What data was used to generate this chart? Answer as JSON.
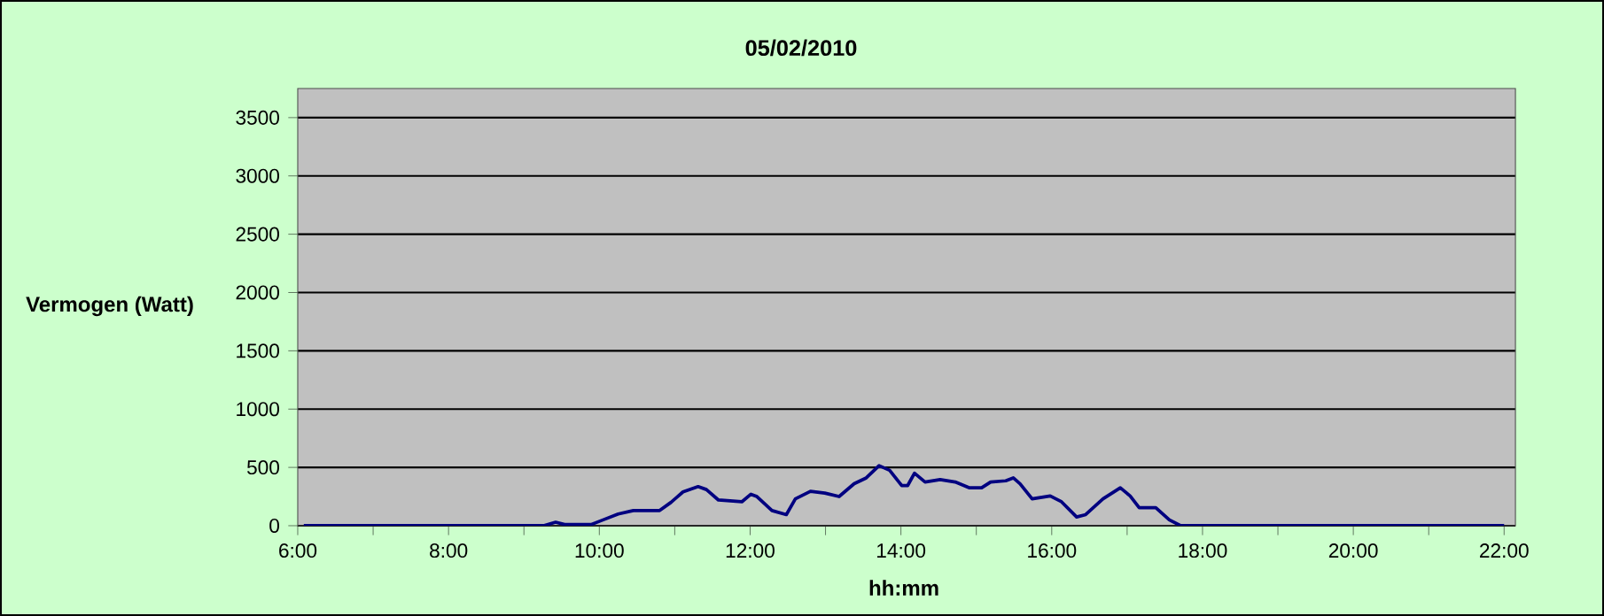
{
  "chart_data": {
    "type": "line",
    "title": "05/02/2010",
    "xlabel": "hh:mm",
    "ylabel": "Vermogen (Watt)",
    "x": [
      6.08,
      9.26,
      9.42,
      9.54,
      9.89,
      10.05,
      10.25,
      10.45,
      10.8,
      10.95,
      11.11,
      11.31,
      11.42,
      11.58,
      11.89,
      12.01,
      12.09,
      12.29,
      12.48,
      12.6,
      12.8,
      12.99,
      13.18,
      13.38,
      13.54,
      13.71,
      13.85,
      14.01,
      14.09,
      14.18,
      14.32,
      14.52,
      14.72,
      14.91,
      15.07,
      15.19,
      15.39,
      15.49,
      15.58,
      15.74,
      15.98,
      16.13,
      16.33,
      16.45,
      16.68,
      16.91,
      17.04,
      17.16,
      17.38,
      17.56,
      17.71,
      22.0
    ],
    "series": [
      {
        "color": "#000080",
        "values": [
          0,
          0,
          30,
          10,
          10,
          50,
          100,
          130,
          130,
          200,
          290,
          335,
          310,
          220,
          205,
          270,
          250,
          130,
          95,
          230,
          295,
          280,
          250,
          360,
          410,
          515,
          475,
          345,
          345,
          450,
          375,
          395,
          375,
          325,
          325,
          375,
          385,
          410,
          360,
          230,
          255,
          205,
          75,
          95,
          230,
          325,
          255,
          155,
          155,
          50,
          0,
          0
        ]
      }
    ],
    "xlim": [
      6,
      22.15
    ],
    "ylim": [
      0,
      3750
    ],
    "xticks": [
      {
        "value": 6,
        "label": "6:00"
      },
      {
        "value": 7,
        "label": null
      },
      {
        "value": 8,
        "label": "8:00"
      },
      {
        "value": 9,
        "label": null
      },
      {
        "value": 10,
        "label": "10:00"
      },
      {
        "value": 11,
        "label": null
      },
      {
        "value": 12,
        "label": "12:00"
      },
      {
        "value": 13,
        "label": null
      },
      {
        "value": 14,
        "label": "14:00"
      },
      {
        "value": 15,
        "label": null
      },
      {
        "value": 16,
        "label": "16:00"
      },
      {
        "value": 17,
        "label": null
      },
      {
        "value": 18,
        "label": "18:00"
      },
      {
        "value": 19,
        "label": null
      },
      {
        "value": 20,
        "label": "20:00"
      },
      {
        "value": 21,
        "label": null
      },
      {
        "value": 22,
        "label": "22:00"
      }
    ],
    "yticks": [
      0,
      500,
      1000,
      1500,
      2000,
      2500,
      3000,
      3500
    ],
    "grid": "y",
    "marker": "none",
    "line_style": "solid"
  }
}
